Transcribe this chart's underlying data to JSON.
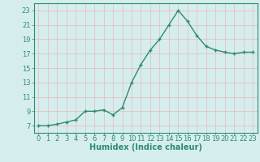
{
  "x": [
    0,
    1,
    2,
    3,
    4,
    5,
    6,
    7,
    8,
    9,
    10,
    11,
    12,
    13,
    14,
    15,
    16,
    17,
    18,
    19,
    20,
    21,
    22,
    23
  ],
  "y": [
    7,
    7,
    7.2,
    7.5,
    7.8,
    9,
    9,
    9.2,
    8.5,
    9.5,
    13,
    15.5,
    17.5,
    19,
    21,
    23,
    21.5,
    19.5,
    18,
    17.5,
    17.2,
    17,
    17.2,
    17.2
  ],
  "line_color": "#2d8b72",
  "marker": "+",
  "marker_color": "#2d8b72",
  "bg_color": "#d5eeed",
  "plot_bg_color": "#d5eeed",
  "grid_color": "#e8b8b8",
  "xlabel": "Humidex (Indice chaleur)",
  "ylabel_ticks": [
    7,
    9,
    11,
    13,
    15,
    17,
    19,
    21,
    23
  ],
  "xlim": [
    -0.5,
    23.5
  ],
  "ylim": [
    6,
    24
  ],
  "xtick_labels": [
    "0",
    "1",
    "2",
    "3",
    "4",
    "5",
    "6",
    "7",
    "8",
    "9",
    "10",
    "11",
    "12",
    "13",
    "14",
    "15",
    "16",
    "17",
    "18",
    "19",
    "20",
    "21",
    "22",
    "23"
  ],
  "xlabel_fontsize": 7,
  "tick_fontsize": 6,
  "line_width": 1.0,
  "marker_size": 3.5
}
